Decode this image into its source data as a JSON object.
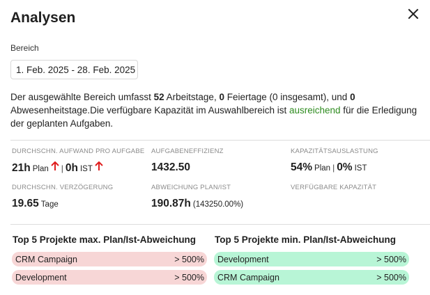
{
  "dialog": {
    "title": "Analysen",
    "close_icon": "close-icon"
  },
  "range": {
    "label": "Bereich",
    "value": "1. Feb. 2025 - 28. Feb. 2025"
  },
  "summary": {
    "part1": "Der ausgewählte Bereich umfasst ",
    "workdays": "52",
    "part2": " Arbeitstage, ",
    "holidays": "0",
    "part3": " Feiertage (0 insgesamt), und ",
    "absences": "0",
    "part4": "Abwesenheitstage.Die verfügbare Kapazität im Auswahlbereich ist ",
    "status": "ausreichend",
    "status_color": "#2e8b1f",
    "part5": " für die Erledigung",
    "part6": "der geplanten Aufgaben."
  },
  "kpis": {
    "avg_effort": {
      "label": "DURCHSCHN. AUFWAND PRO AUFGABE",
      "plan_value": "21h",
      "plan_unit": "Plan",
      "plan_trend": "arrow-up-icon",
      "separator": "|",
      "actual_value": "0h",
      "actual_unit": "IST",
      "actual_trend": "arrow-up-icon",
      "trend_color": "#e01e1e"
    },
    "efficiency": {
      "label": "AUFGABENEFFIZIENZ",
      "value": "1432.50"
    },
    "utilization": {
      "label": "KAPAZITÄTSAUSLASTUNG",
      "plan_value": "54%",
      "plan_unit": "Plan",
      "separator": "|",
      "actual_value": "0%",
      "actual_unit": "IST"
    },
    "delay": {
      "label": "DURCHSCHN. VERZÖGERUNG",
      "value": "19.65",
      "unit": "Tage"
    },
    "deviation": {
      "label": "ABWEICHUNG PLAN/IST",
      "value": "190.87h",
      "detail": "(143250.00%)"
    },
    "capacity": {
      "label": "VERFÜGBARE KAPAZITÄT"
    }
  },
  "top_max": {
    "title": "Top 5 Projekte max. Plan/Ist-Abweichung",
    "color": "#f7d6d6",
    "items": [
      {
        "name": "CRM Campaign",
        "value": "> 500%"
      },
      {
        "name": "Development",
        "value": "> 500%"
      }
    ]
  },
  "top_min": {
    "title": "Top 5 Projekte min. Plan/Ist-Abweichung",
    "color": "#b8f5d6",
    "items": [
      {
        "name": "Development",
        "value": "> 500%"
      },
      {
        "name": "CRM Campaign",
        "value": "> 500%"
      }
    ]
  }
}
